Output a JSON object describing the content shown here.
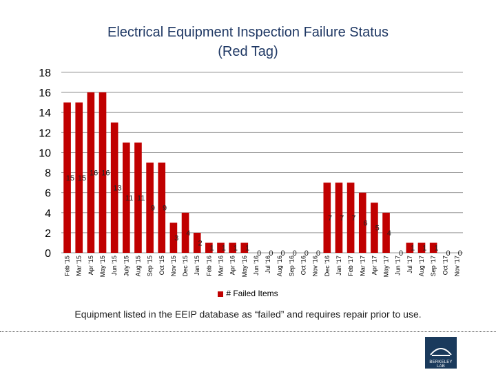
{
  "chart_data": {
    "type": "bar",
    "title": "Electrical Equipment Inspection Failure Status",
    "subtitle": "(Red Tag)",
    "categories": [
      "Feb '15",
      "Mar '15",
      "Apr '15",
      "May '15",
      "Jun '15",
      "July '15",
      "Aug '15",
      "Sep '15",
      "Oct '15",
      "Nov '15",
      "Dec '15",
      "Jan '15",
      "Feb '16",
      "Mar '16",
      "Apr '16",
      "May '16",
      "Jun '16",
      "Jul '16",
      "Aug '16",
      "Sep '16",
      "Oct '16",
      "Nov '16",
      "Dec '16",
      "Jan '17",
      "Feb '17",
      "Mar '17",
      "Apr '17",
      "May '17",
      "Jun '17",
      "Jul '17",
      "Aug '17",
      "Sep '17",
      "Oct '17",
      "Nov '17"
    ],
    "series": [
      {
        "name": "# Failed Items",
        "values": [
          15,
          15,
          16,
          16,
          13,
          11,
          11,
          9,
          9,
          3,
          4,
          2,
          1,
          1,
          1,
          1,
          0,
          0,
          0,
          0,
          0,
          0,
          7,
          7,
          7,
          6,
          5,
          4,
          0,
          1,
          1,
          1,
          0,
          0
        ]
      }
    ],
    "ylim": [
      0,
      18
    ],
    "yticks": [
      "0",
      "2",
      "4",
      "6",
      "8",
      "10",
      "12",
      "14",
      "16",
      "18"
    ],
    "grid": true,
    "legend_position": "bottom",
    "bar_color": "#c00000"
  },
  "caption": "Equipment listed in the EEIP database as “failed” and requires repair prior to use.",
  "logo_text": "BERKELEY LAB"
}
